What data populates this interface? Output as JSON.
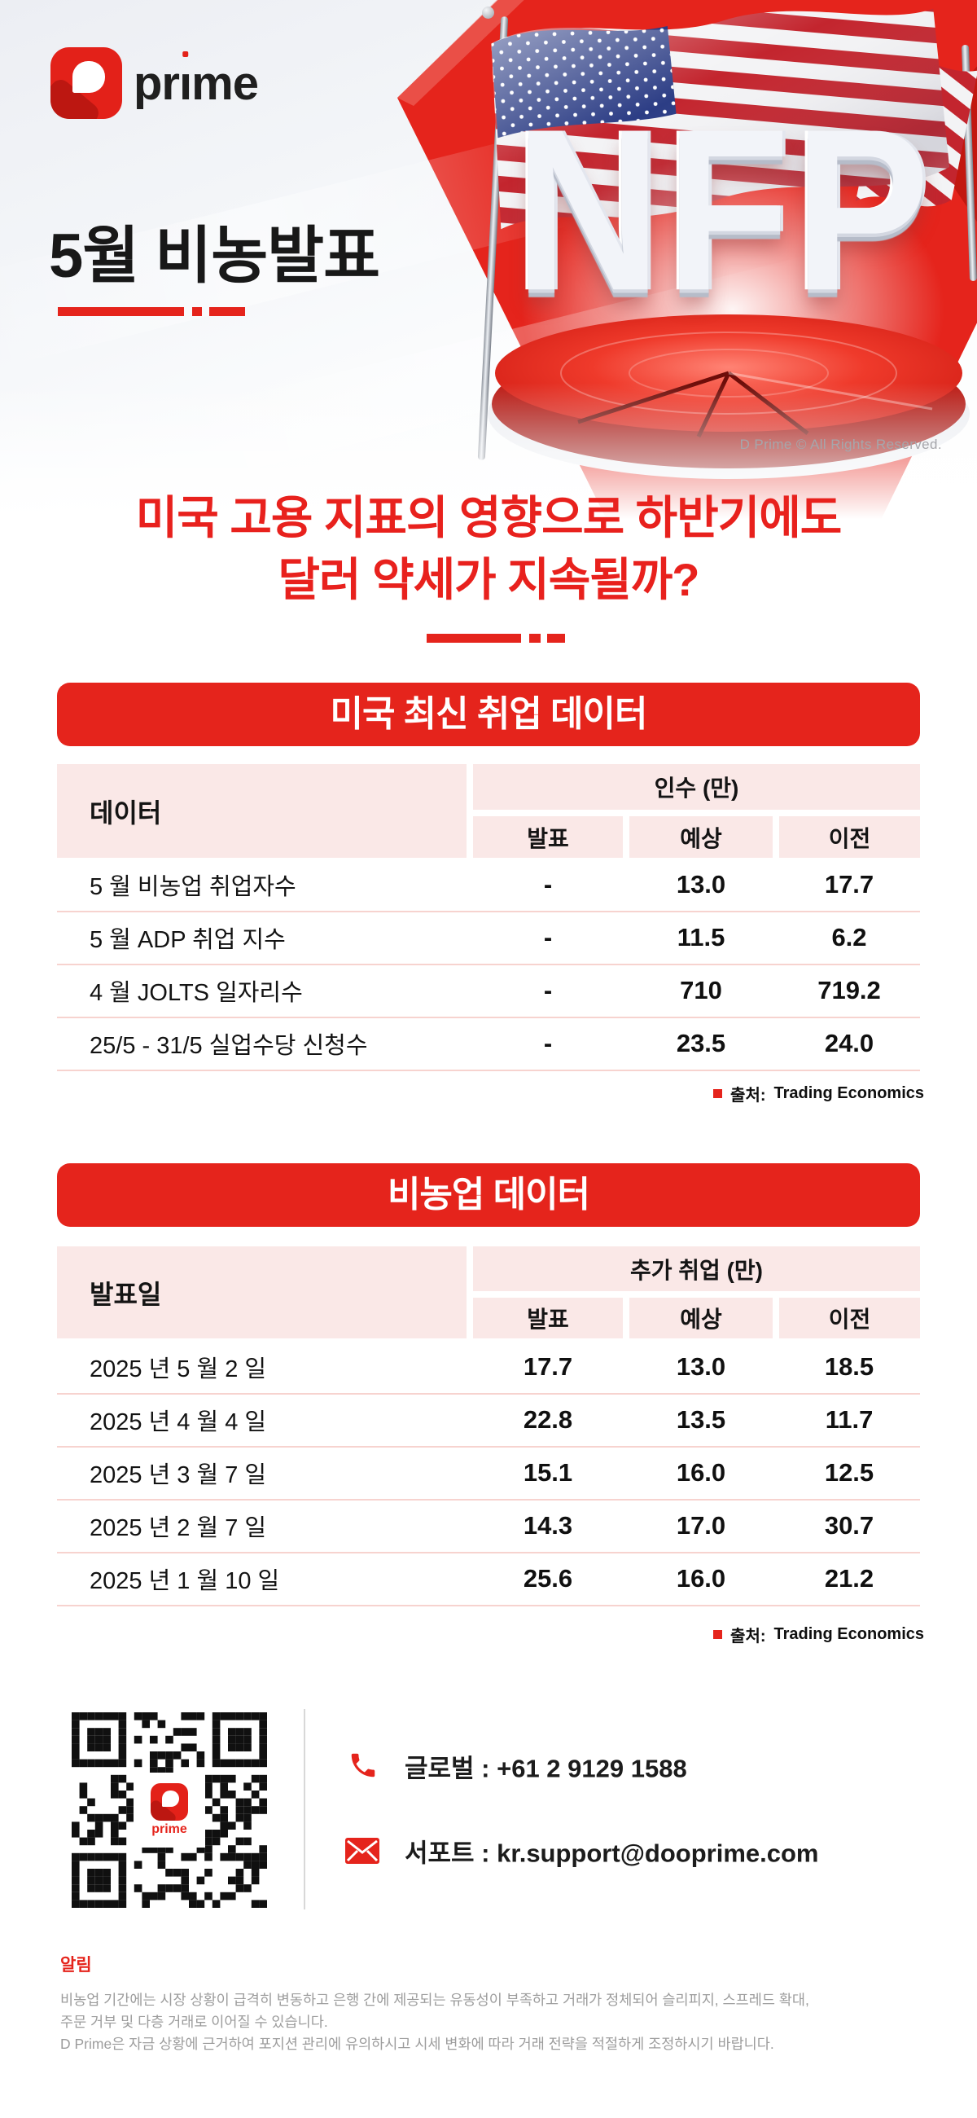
{
  "brand": {
    "word_pre": "pr",
    "word_i": "ı",
    "word_post": "me",
    "qr_word": "prime",
    "copyright": "D Prime © All Rights Reserved."
  },
  "hero": {
    "title": "5월 비농발표",
    "nfp_text": "NFP"
  },
  "headline": {
    "line1": "미국 고용 지표의 영향으로 하반기에도",
    "line2": "달러 약세가 지속될까?"
  },
  "tables": [
    {
      "title": "미국 최신 취업 데이터",
      "row_header": "데이터",
      "col_group": "인수 (만)",
      "columns": [
        "발표",
        "예상",
        "이전"
      ],
      "rows": [
        {
          "label": "5 월 비농업 취업자수",
          "values": [
            "-",
            "13.0",
            "17.7"
          ]
        },
        {
          "label": "5 월 ADP 취업 지수",
          "values": [
            "-",
            "11.5",
            "6.2"
          ]
        },
        {
          "label": "4 월 JOLTS 일자리수",
          "values": [
            "-",
            "710",
            "719.2"
          ]
        },
        {
          "label": "25/5 - 31/5 실업수당 신청수",
          "values": [
            "-",
            "23.5",
            "24.0"
          ]
        }
      ],
      "source_label": "출처:",
      "source_value": "Trading Economics"
    },
    {
      "title": "비농업 데이터",
      "row_header": "발표일",
      "col_group": "추가 취업 (만)",
      "columns": [
        "발표",
        "예상",
        "이전"
      ],
      "rows": [
        {
          "label": "2025 년 5 월 2 일",
          "values": [
            "17.7",
            "13.0",
            "18.5"
          ]
        },
        {
          "label": "2025 년 4 월 4 일",
          "values": [
            "22.8",
            "13.5",
            "11.7"
          ]
        },
        {
          "label": "2025 년 3 월 7 일",
          "values": [
            "15.1",
            "16.0",
            "12.5"
          ]
        },
        {
          "label": "2025 년 2 월 7 일",
          "values": [
            "14.3",
            "17.0",
            "30.7"
          ]
        },
        {
          "label": "2025 년 1 월 10 일",
          "values": [
            "25.6",
            "16.0",
            "21.2"
          ]
        }
      ],
      "source_label": "출처:",
      "source_value": "Trading Economics"
    }
  ],
  "contact": {
    "phone": "글로벌 : +61 2 9129 1588",
    "email": "서포트 : kr.support@dooprime.com"
  },
  "notice": {
    "title": "알림",
    "line1": "비농업 기간에는 시장 상황이 급격히 변동하고 은행 간에 제공되는 유동성이 부족하고 거래가 정체되어 슬리피지, 스프레드 확대,",
    "line2": "주문 거부 및 다층 거래로 이어질 수 있습니다.",
    "line3": "D Prime은 자금 상황에 근거하여 포지션 관리에 유의하시고 시세 변화에 따라 거래 전략을 적절하게 조정하시기 바랍니다."
  },
  "colors": {
    "accent_red": "#e5241c",
    "table_header_bg": "#fae8e7",
    "row_divider": "#f7d3cf",
    "notice_gray": "#9c9c9c"
  }
}
